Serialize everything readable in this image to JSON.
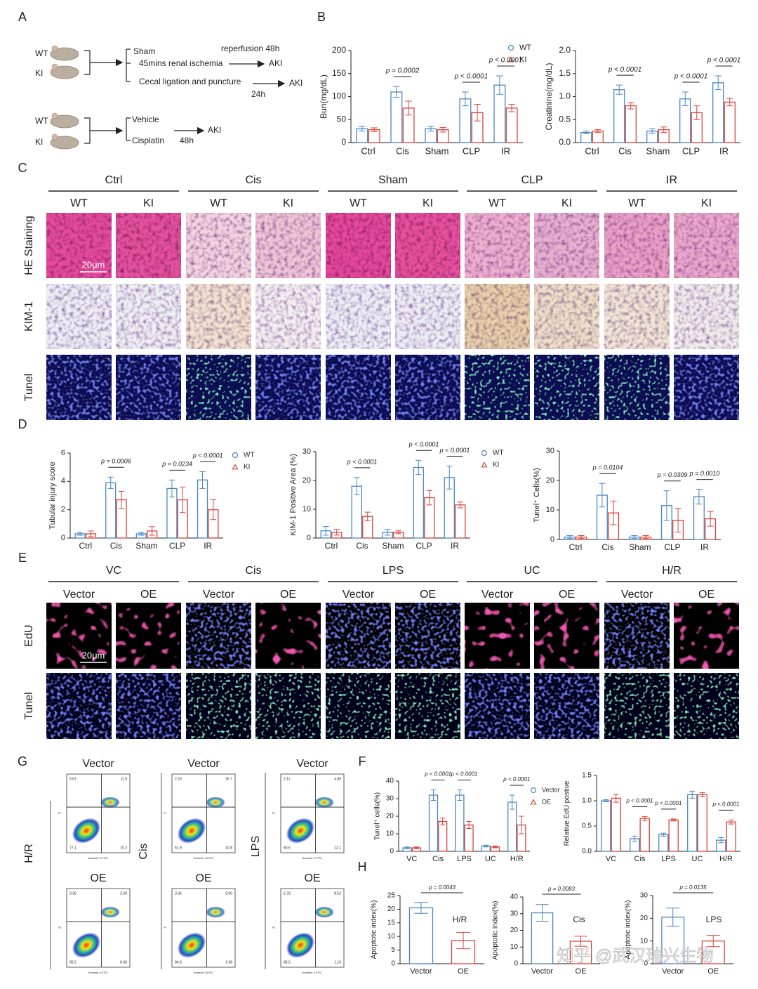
{
  "panel_labels": [
    "A",
    "B",
    "C",
    "D",
    "E",
    "F",
    "G",
    "H"
  ],
  "schematic": [
    "WT",
    "KI",
    "Sham",
    "45mins renal ischemia",
    "reperfusion 48h",
    "AKI",
    "Cecal ligation and puncture",
    "AKI",
    "24h",
    "WT",
    "KI",
    "Vehicle",
    "Cisplatin",
    "48h",
    "AKI"
  ],
  "panel_c": {
    "groups": [
      "Ctrl",
      "Cis",
      "Sham",
      "CLP",
      "IR"
    ],
    "subgroups": [
      "WT",
      "KI"
    ],
    "rows": [
      "HE Staining",
      "KIM-1",
      "Tunel"
    ],
    "scale_bar": "20μm"
  },
  "panel_e": {
    "groups": [
      "VC",
      "Cis",
      "LPS",
      "UC",
      "H/R"
    ],
    "subgroups": [
      "Vector",
      "OE"
    ],
    "rows": [
      "EdU",
      "Tunel"
    ],
    "scale_bar": "20μm"
  },
  "panel_g": {
    "row_titles": [
      "Vector",
      "OE"
    ],
    "columns": [
      "H/R",
      "Cis",
      "LPS"
    ],
    "x_label": "Annexin V-FITC",
    "y_label": "PI",
    "quadrants": [
      [
        [
          "5.67",
          "11.9",
          "77.1",
          "10.2"
        ],
        [
          "2.23",
          "26.7",
          "61.9",
          "10.8"
        ],
        [
          "2.11",
          "4.89",
          "80.6",
          "12.1"
        ]
      ],
      [
        [
          "0.36",
          "2.69",
          "96.5",
          "0.43"
        ],
        [
          "3.36",
          "8.90",
          "84.8",
          "1.98"
        ],
        [
          "5.78",
          "8.52",
          "86.0",
          "1.16"
        ]
      ]
    ]
  },
  "chart_data": [
    {
      "type": "bar",
      "y_label": "Bun(mg/dL)",
      "categories": [
        "Ctrl",
        "Cis",
        "Sham",
        "CLP",
        "IR"
      ],
      "series": [
        {
          "name": "WT",
          "color": "#4a86c5",
          "values": [
            30,
            110,
            30,
            95,
            125
          ],
          "errors": [
            5,
            12,
            5,
            15,
            20
          ]
        },
        {
          "name": "KI",
          "color": "#d9443a",
          "values": [
            28,
            75,
            28,
            65,
            75
          ],
          "errors": [
            4,
            15,
            5,
            18,
            8
          ]
        }
      ],
      "ylim": [
        0,
        200
      ],
      "yticks": [
        0,
        50,
        100,
        150,
        200
      ],
      "legend": "upper right",
      "annotations": [
        {
          "text": "p = 0.0002",
          "category": "Cis"
        },
        {
          "text": "p < 0.0001",
          "category": "CLP"
        },
        {
          "text": "p < 0.0001",
          "category": "IR"
        }
      ]
    },
    {
      "type": "bar",
      "y_label": "Creatinine(mg/dL)",
      "categories": [
        "Ctrl",
        "Cis",
        "Sham",
        "CLP",
        "IR"
      ],
      "series": [
        {
          "name": "WT",
          "color": "#4a86c5",
          "values": [
            0.22,
            1.15,
            0.25,
            0.95,
            1.3
          ],
          "errors": [
            0.03,
            0.1,
            0.05,
            0.15,
            0.15
          ]
        },
        {
          "name": "KI",
          "color": "#d9443a",
          "values": [
            0.25,
            0.8,
            0.28,
            0.65,
            0.88
          ],
          "errors": [
            0.03,
            0.07,
            0.06,
            0.15,
            0.08
          ]
        }
      ],
      "ylim": [
        0,
        2
      ],
      "yticks": [
        {
          "value": 0,
          "label": "0.0"
        },
        0.5,
        {
          "value": 1,
          "label": "1.0"
        },
        1.5,
        {
          "value": 2,
          "label": "2.0"
        }
      ],
      "annotations": [
        {
          "text": "p < 0.0001",
          "category": "Cis"
        },
        {
          "text": "p < 0.0001",
          "category": "CLP"
        },
        {
          "text": "p < 0.0001",
          "category": "IR"
        }
      ]
    },
    {
      "type": "bar",
      "y_label": "Tubular injury score",
      "categories": [
        "Ctrl",
        "Cis",
        "Sham",
        "CLP",
        "IR"
      ],
      "series": [
        {
          "name": "WT",
          "color": "#4a86c5",
          "values": [
            0.3,
            3.9,
            0.3,
            3.5,
            4.1
          ],
          "errors": [
            0.1,
            0.4,
            0.1,
            0.6,
            0.6
          ]
        },
        {
          "name": "KI",
          "color": "#d9443a",
          "values": [
            0.3,
            2.7,
            0.5,
            2.7,
            2.0
          ],
          "errors": [
            0.2,
            0.6,
            0.3,
            0.9,
            0.7
          ]
        }
      ],
      "ylim": [
        0,
        6
      ],
      "yticks": [
        0,
        2,
        4,
        6
      ],
      "legend": "upper right",
      "annotations": [
        {
          "text": "p = 0.0006",
          "category": "Cis"
        },
        {
          "text": "p = 0.0234",
          "category": "CLP"
        },
        {
          "text": "p < 0.0001",
          "category": "IR"
        }
      ]
    },
    {
      "type": "bar",
      "y_label": "KIM-1 Positive Area (%)",
      "categories": [
        "Ctrl",
        "Cis",
        "Sham",
        "CLP",
        "IR"
      ],
      "series": [
        {
          "name": "WT",
          "color": "#4a86c5",
          "values": [
            2.5,
            18,
            2,
            24.5,
            21
          ],
          "errors": [
            1.5,
            3,
            1,
            2.5,
            4
          ]
        },
        {
          "name": "KI",
          "color": "#d9443a",
          "values": [
            2,
            7.5,
            2,
            14,
            11.5
          ],
          "errors": [
            1,
            1.5,
            0.5,
            2.5,
            1
          ]
        }
      ],
      "ylim": [
        0,
        30
      ],
      "yticks": [
        0,
        10,
        20,
        30
      ],
      "legend": "upper right",
      "annotations": [
        {
          "text": "p < 0.0001",
          "category": "Cis"
        },
        {
          "text": "p < 0.0001",
          "category": "CLP"
        },
        {
          "text": "p < 0.0001",
          "category": "IR"
        }
      ]
    },
    {
      "type": "bar",
      "y_label": "Tunel⁺ Cells(%)",
      "categories": [
        "Ctrl",
        "Cis",
        "Sham",
        "CLP",
        "IR"
      ],
      "series": [
        {
          "name": "WT",
          "color": "#4a86c5",
          "values": [
            0.8,
            15,
            0.8,
            11.5,
            14.5
          ],
          "errors": [
            0.5,
            4,
            0.5,
            5,
            2.5
          ]
        },
        {
          "name": "KI",
          "color": "#d9443a",
          "values": [
            0.8,
            9,
            0.8,
            6.5,
            7
          ],
          "errors": [
            0.5,
            4,
            0.5,
            4,
            2.5
          ]
        }
      ],
      "ylim": [
        0,
        30
      ],
      "yticks": [
        0,
        10,
        20,
        30
      ],
      "annotations": [
        {
          "text": "p = 0.0104",
          "category": "Cis"
        },
        {
          "text": "p = 0.0309",
          "category": "CLP"
        },
        {
          "text": "p = 0.0010",
          "category": "IR"
        }
      ]
    },
    {
      "type": "bar",
      "y_label": "Tunel⁺ cells(%)",
      "categories": [
        "VC",
        "Cis",
        "LPS",
        "UC",
        "H/R"
      ],
      "series": [
        {
          "name": "Vector",
          "color": "#4a86c5",
          "values": [
            2,
            32,
            32,
            3,
            28
          ],
          "errors": [
            0.5,
            3,
            3,
            0.5,
            4
          ]
        },
        {
          "name": "OE",
          "color": "#d9443a",
          "values": [
            2,
            17,
            15,
            2.5,
            15
          ],
          "errors": [
            0.5,
            2,
            2,
            0.5,
            5
          ]
        }
      ],
      "ylim": [
        0,
        40
      ],
      "yticks": [
        0,
        10,
        20,
        30,
        40
      ],
      "legend": "upper right",
      "annotations": [
        {
          "text": "p < 0.0001",
          "category": "Cis"
        },
        {
          "text": "p < 0.0001",
          "category": "LPS"
        },
        {
          "text": "p < 0.0001",
          "category": "H/R"
        }
      ]
    },
    {
      "type": "bar",
      "y_label": "Relative EdU postive",
      "categories": [
        "VC",
        "Cis",
        "LPS",
        "UC",
        "H/R"
      ],
      "series": [
        {
          "name": "Vector",
          "color": "#4a86c5",
          "values": [
            1.0,
            0.25,
            0.33,
            1.12,
            0.22
          ],
          "errors": [
            0.02,
            0.05,
            0.03,
            0.07,
            0.05
          ]
        },
        {
          "name": "OE",
          "color": "#d9443a",
          "values": [
            1.05,
            0.65,
            0.62,
            1.12,
            0.58
          ],
          "errors": [
            0.08,
            0.04,
            0.02,
            0.04,
            0.04
          ]
        }
      ],
      "ylim": [
        0,
        1.5
      ],
      "yticks": [
        {
          "value": 0,
          "label": "0.0"
        },
        0.5,
        {
          "value": 1,
          "label": "1.0"
        },
        1.5
      ],
      "annotations": [
        {
          "text": "p < 0.0001",
          "category": "Cis"
        },
        {
          "text": "p < 0.0001",
          "category": "LPS"
        },
        {
          "text": "p < 0.0001",
          "category": "H/R"
        }
      ]
    },
    {
      "type": "bar",
      "y_label": "Apoptotic index(%)",
      "categories": [
        "Vector",
        "OE"
      ],
      "values": [
        20.5,
        8.5
      ],
      "errors": [
        2,
        3
      ],
      "colors": [
        "#4a86c5",
        "#d9443a"
      ],
      "ylim": [
        0,
        25
      ],
      "yticks": [
        0,
        5,
        10,
        15,
        20,
        25
      ],
      "label": "H/R",
      "p_value": "p = 0.0043"
    },
    {
      "type": "bar",
      "y_label": "Apoptotic index(%)",
      "categories": [
        "Vector",
        "OE"
      ],
      "values": [
        30.5,
        13.5
      ],
      "errors": [
        5,
        3
      ],
      "colors": [
        "#4a86c5",
        "#d9443a"
      ],
      "ylim": [
        0,
        40
      ],
      "yticks": [
        0,
        10,
        20,
        30,
        40
      ],
      "label": "Cis",
      "p_value": "p = 0.0083"
    },
    {
      "type": "bar",
      "y_label": "Apoptotic index(%)",
      "categories": [
        "Vector",
        "OE"
      ],
      "values": [
        20.5,
        10
      ],
      "errors": [
        4,
        2.5
      ],
      "colors": [
        "#4a86c5",
        "#d9443a"
      ],
      "ylim": [
        0,
        30
      ],
      "yticks": [
        0,
        10,
        20,
        30
      ],
      "label": "LPS",
      "p_value": "p = 0.0135"
    }
  ],
  "watermark": "知乎 @武汉瑞兴生物"
}
